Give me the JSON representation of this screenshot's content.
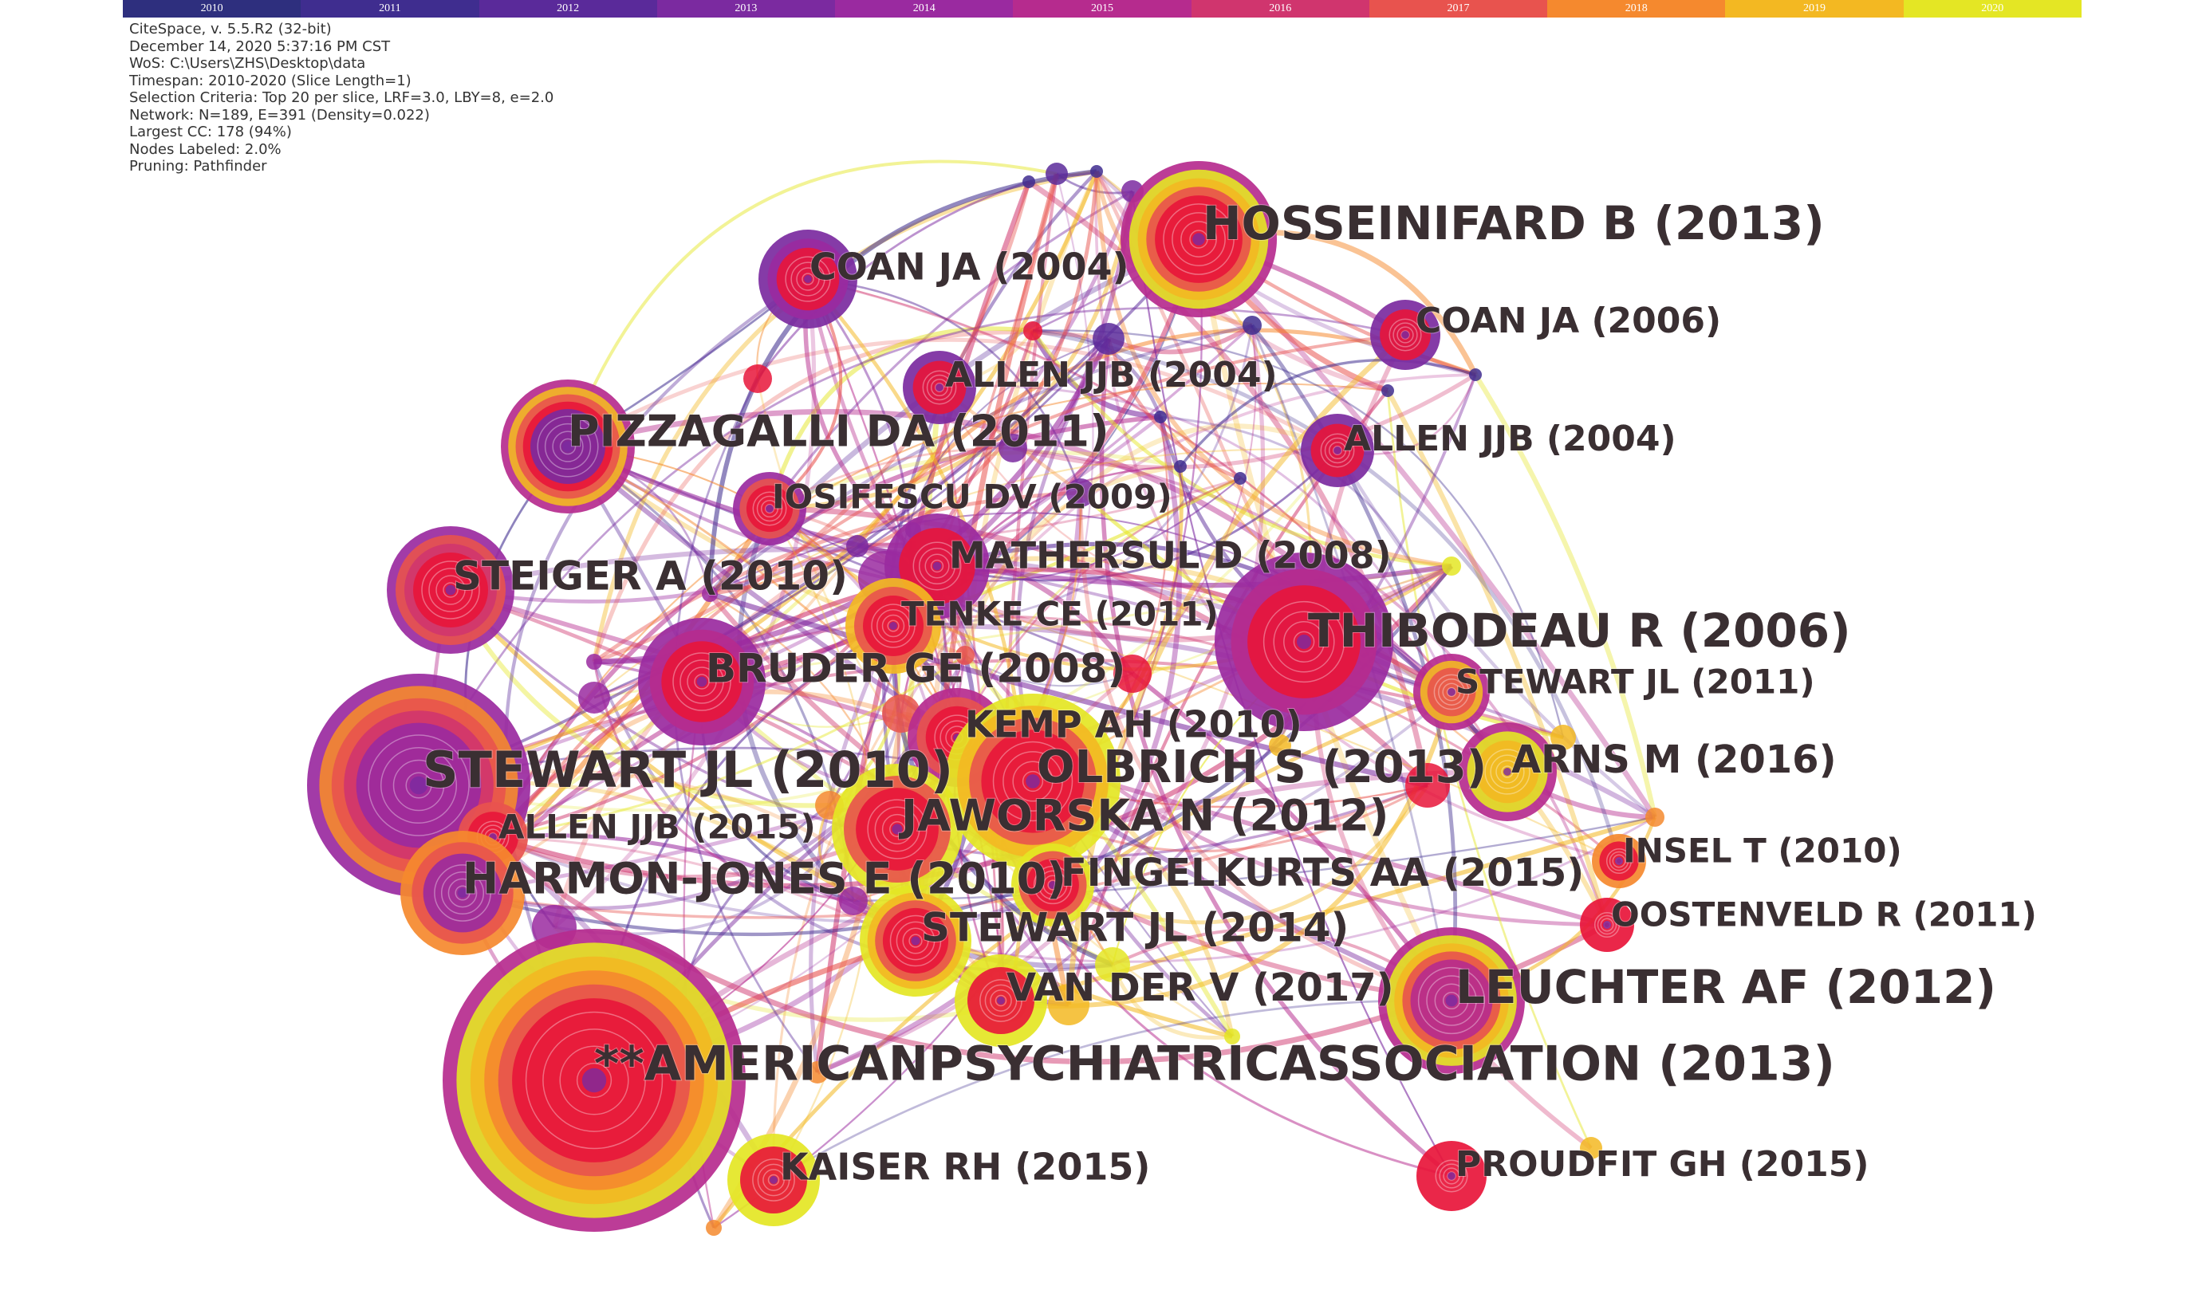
{
  "timeline": {
    "years": [
      "2010",
      "2011",
      "2012",
      "2013",
      "2014",
      "2015",
      "2016",
      "2017",
      "2018",
      "2019",
      "2020"
    ],
    "colors": [
      "#2e2f7e",
      "#3f2d8f",
      "#5a2a9a",
      "#7b2aa0",
      "#9a2aa0",
      "#b62b8e",
      "#d0356e",
      "#e8534e",
      "#f5892e",
      "#f3b822",
      "#e4e624"
    ]
  },
  "meta": [
    "CiteSpace, v. 5.5.R2 (32-bit)",
    "December 14, 2020 5:37:16 PM CST",
    "WoS: C:\\Users\\ZHS\\Desktop\\data",
    "Timespan: 2010-2020 (Slice Length=1)",
    "Selection Criteria: Top 20 per slice, LRF=3.0, LBY=8, e=2.0",
    "Network: N=189, E=391 (Density=0.022)",
    "Largest CC: 178 (94%)",
    "Nodes Labeled: 2.0%",
    "Pruning: Pathfinder"
  ],
  "nodes": [
    {
      "label": "HOSSEINIFARD B (2013)",
      "rings": [
        "#b62b8e",
        "#e4e624",
        "#f3b822",
        "#e8534e",
        "#e8153a"
      ],
      "fontSize": 58
    },
    {
      "label": "COAN JA (2004)",
      "rings": [
        "#7b2aa0",
        "#9a2aa0",
        "#e8153a"
      ],
      "fontSize": 46
    },
    {
      "label": "COAN JA (2006)",
      "rings": [
        "#7b2aa0",
        "#e8153a"
      ],
      "fontSize": 44
    },
    {
      "label": "ALLEN JJB (2004)",
      "rings": [
        "#7b2aa0",
        "#e8153a"
      ],
      "fontSize": 44
    },
    {
      "label": "ALLEN JJB (2004)",
      "rings": [
        "#7b2aa0",
        "#e8153a"
      ],
      "fontSize": 44
    },
    {
      "label": "PIZZAGALLI DA (2011)",
      "rings": [
        "#b62b8e",
        "#f3b822",
        "#e8534e",
        "#e8153a",
        "#7b2aa0"
      ],
      "fontSize": 54
    },
    {
      "label": "IOSIFESCU DV (2009)",
      "rings": [
        "#9a2aa0",
        "#e8534e",
        "#e8153a"
      ],
      "fontSize": 42
    },
    {
      "label": "MATHERSUL D (2008)",
      "rings": [
        "#9a2aa0",
        "#e8153a"
      ],
      "fontSize": 46
    },
    {
      "label": "STEIGER A (2010)",
      "rings": [
        "#9a2aa0",
        "#e8534e",
        "#d0356e",
        "#e8153a"
      ],
      "fontSize": 50
    },
    {
      "label": "TENKE CE (2011)",
      "rings": [
        "#f3b822",
        "#e8534e",
        "#e8153a"
      ],
      "fontSize": 42
    },
    {
      "label": "THIBODEAU R (2006)",
      "rings": [
        "#9a2aa0",
        "#b62b8e",
        "#e8153a"
      ],
      "fontSize": 58
    },
    {
      "label": "BRUDER GE (2008)",
      "rings": [
        "#9a2aa0",
        "#b62b8e",
        "#e8153a"
      ],
      "fontSize": 50
    },
    {
      "label": "STEWART JL (2011)",
      "rings": [
        "#b62b8e",
        "#f3b822",
        "#e8534e"
      ],
      "fontSize": 42
    },
    {
      "label": "KEMP AH (2010)",
      "rings": [
        "#b62b8e",
        "#e8534e",
        "#e8153a"
      ],
      "fontSize": 46
    },
    {
      "label": "ARNS M (2016)",
      "rings": [
        "#b62b8e",
        "#e4e624",
        "#f3b822"
      ],
      "fontSize": 48
    },
    {
      "label": "STEWART JL (2010)",
      "rings": [
        "#9a2aa0",
        "#f5892e",
        "#e8534e",
        "#d0356e",
        "#9a2aa0"
      ],
      "fontSize": 62
    },
    {
      "label": "OLBRICH S (2013)",
      "rings": [
        "#e4e624",
        "#f3b822",
        "#e8534e",
        "#e8153a"
      ],
      "fontSize": 56
    },
    {
      "label": "JAWORSKA N (2012)",
      "rings": [
        "#e4e624",
        "#e8534e",
        "#e8153a"
      ],
      "fontSize": 54
    },
    {
      "label": "ALLEN JJB (2015)",
      "rings": [
        "#e8534e",
        "#e8153a"
      ],
      "fontSize": 42
    },
    {
      "label": "INSEL T (2010)",
      "rings": [
        "#f5892e",
        "#e8153a"
      ],
      "fontSize": 42
    },
    {
      "label": "HARMON-JONES E (2010)",
      "rings": [
        "#f5892e",
        "#e8534e",
        "#9a2aa0"
      ],
      "fontSize": 54
    },
    {
      "label": "FINGELKURTS AA (2015)",
      "rings": [
        "#e4e624",
        "#e8534e",
        "#e8153a"
      ],
      "fontSize": 48
    },
    {
      "label": "OOSTENVELD R (2011)",
      "rings": [
        "#e8153a"
      ],
      "fontSize": 42
    },
    {
      "label": "STEWART JL (2014)",
      "rings": [
        "#e4e624",
        "#f3b822",
        "#e8534e",
        "#e8153a"
      ],
      "fontSize": 50
    },
    {
      "label": "LEUCHTER AF (2012)",
      "rings": [
        "#b62b8e",
        "#e4e624",
        "#f3b822",
        "#e8534e",
        "#b62b8e"
      ],
      "fontSize": 58
    },
    {
      "label": "VAN DER V (2017)",
      "rings": [
        "#e4e624",
        "#e8153a"
      ],
      "fontSize": 48
    },
    {
      "label": "**AMERICANPSYCHIATRICASSOCIATION (2013)",
      "rings": [
        "#b62b8e",
        "#e4e624",
        "#f3b822",
        "#f5892e",
        "#e8534e",
        "#e8153a"
      ],
      "fontSize": 60
    },
    {
      "label": "KAISER RH (2015)",
      "rings": [
        "#e4e624",
        "#e8153a"
      ],
      "fontSize": 46
    },
    {
      "label": "PROUDFIT GH (2015)",
      "rings": [
        "#e8153a"
      ],
      "fontSize": 44
    }
  ]
}
